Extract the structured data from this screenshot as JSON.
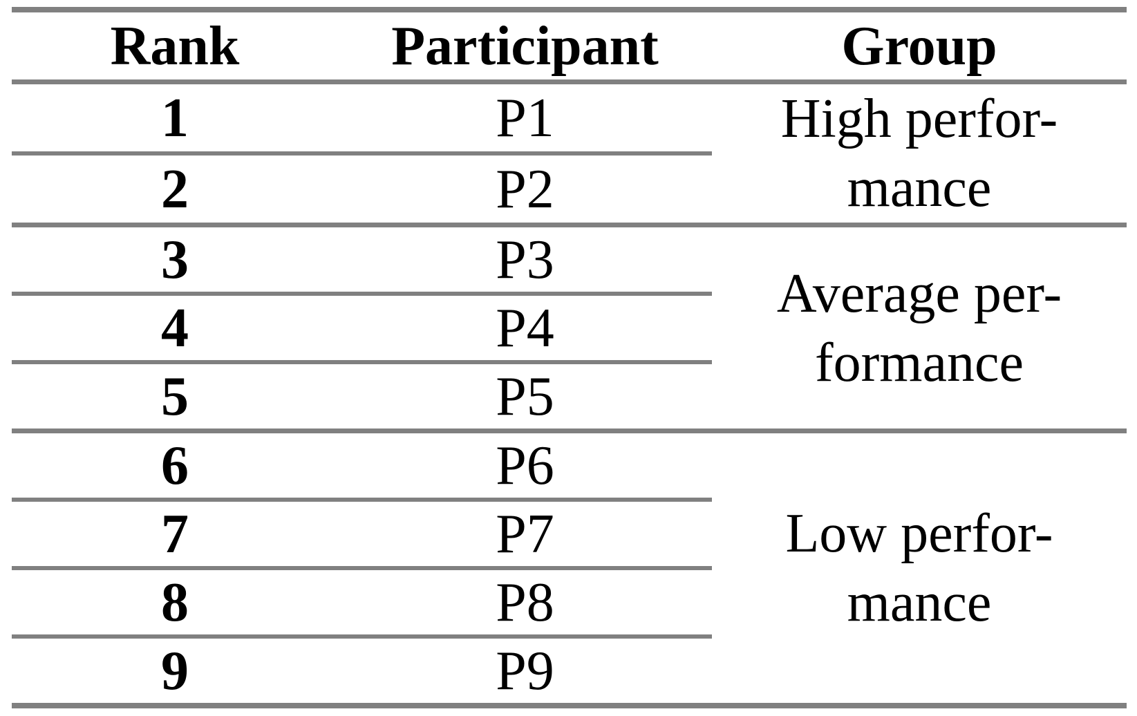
{
  "table": {
    "columns": {
      "rank": "Rank",
      "participant": "Participant",
      "group": "Group"
    },
    "rows": [
      {
        "rank": "1",
        "participant": "P1"
      },
      {
        "rank": "2",
        "participant": "P2"
      },
      {
        "rank": "3",
        "participant": "P3"
      },
      {
        "rank": "4",
        "participant": "P4"
      },
      {
        "rank": "5",
        "participant": "P5"
      },
      {
        "rank": "6",
        "participant": "P6"
      },
      {
        "rank": "7",
        "participant": "P7"
      },
      {
        "rank": "8",
        "participant": "P8"
      },
      {
        "rank": "9",
        "participant": "P9"
      }
    ],
    "groups": [
      {
        "label": "High perfor-\nmance",
        "rows_spanned": 2
      },
      {
        "label": "Average per-\nformance",
        "rows_spanned": 3
      },
      {
        "label": "Low perfor-\nmance",
        "rows_spanned": 4
      }
    ]
  },
  "chart_data": {
    "type": "table",
    "title": "",
    "columns": [
      "Rank",
      "Participant",
      "Group"
    ],
    "rows": [
      [
        "1",
        "P1",
        "High performance"
      ],
      [
        "2",
        "P2",
        "High performance"
      ],
      [
        "3",
        "P3",
        "Average performance"
      ],
      [
        "4",
        "P4",
        "Average performance"
      ],
      [
        "5",
        "P5",
        "Average performance"
      ],
      [
        "6",
        "P6",
        "Low performance"
      ],
      [
        "7",
        "P7",
        "Low performance"
      ],
      [
        "8",
        "P8",
        "Low performance"
      ],
      [
        "9",
        "P9",
        "Low performance"
      ]
    ]
  },
  "colors": {
    "rule": "#808080",
    "text": "#000000",
    "background": "#ffffff"
  }
}
